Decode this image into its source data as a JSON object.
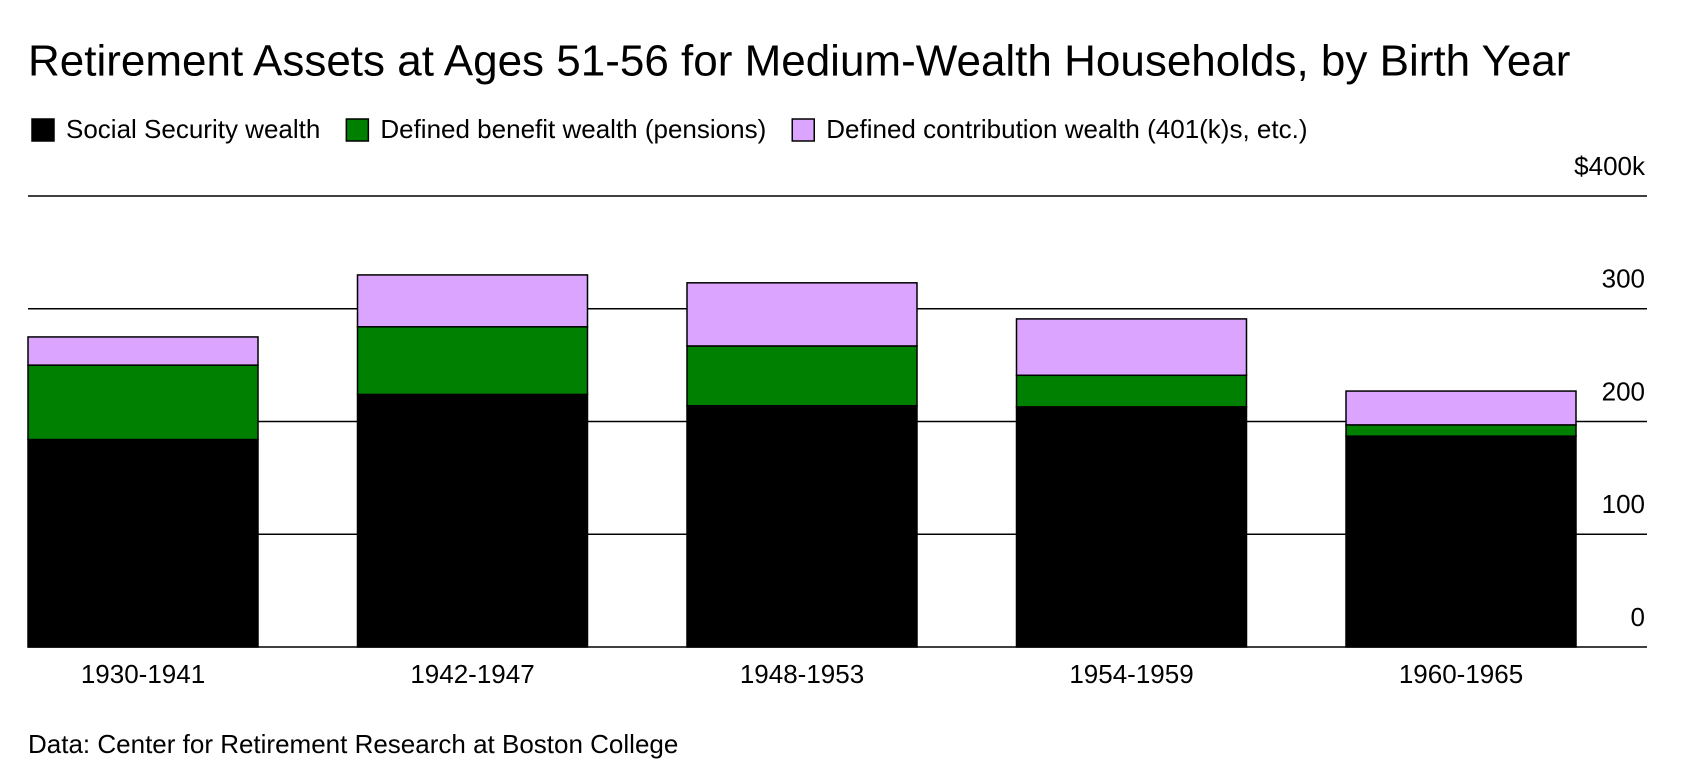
{
  "chart_data": {
    "type": "stacked_bar",
    "title": "Retirement Assets at Ages 51-56 for Medium-Wealth Households, by Birth Year",
    "source": "Data: Center for Retirement Research at Boston College",
    "categories": [
      "1930-1941",
      "1942-1947",
      "1948-1953",
      "1954-1959",
      "1960-1965"
    ],
    "series": [
      {
        "name": "Social Security wealth",
        "color": "#000000",
        "values": [
          184,
          224,
          214,
          213,
          187
        ]
      },
      {
        "name": "Defined benefit wealth (pensions)",
        "color": "#008000",
        "values": [
          66,
          60,
          53,
          28,
          10
        ]
      },
      {
        "name": "Defined contribution wealth (401(k)s, etc.)",
        "color": "#dba4ff",
        "values": [
          25,
          46,
          56,
          50,
          30
        ]
      }
    ],
    "ylim": [
      0,
      400
    ],
    "yticks": [
      0,
      100,
      200,
      300,
      {
        "value": 400,
        "label": "$400k"
      }
    ],
    "grid": true
  }
}
